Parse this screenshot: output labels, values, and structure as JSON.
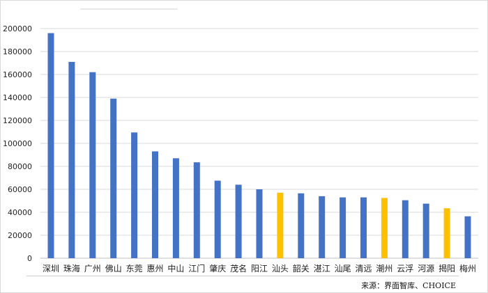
{
  "chart_data": {
    "type": "bar",
    "categories": [
      "深圳",
      "珠海",
      "广州",
      "佛山",
      "东莞",
      "惠州",
      "中山",
      "江门",
      "肇庆",
      "茂名",
      "阳江",
      "汕头",
      "韶关",
      "湛江",
      "汕尾",
      "清远",
      "潮州",
      "云浮",
      "河源",
      "揭阳",
      "梅州"
    ],
    "values": [
      196000,
      171000,
      162000,
      139000,
      109500,
      93000,
      87000,
      83500,
      67500,
      64000,
      60000,
      57000,
      56500,
      54000,
      53000,
      53000,
      52500,
      50500,
      47500,
      43500,
      36500
    ],
    "colors": [
      "#4472C4",
      "#4472C4",
      "#4472C4",
      "#4472C4",
      "#4472C4",
      "#4472C4",
      "#4472C4",
      "#4472C4",
      "#4472C4",
      "#4472C4",
      "#4472C4",
      "#FFC000",
      "#4472C4",
      "#4472C4",
      "#4472C4",
      "#4472C4",
      "#FFC000",
      "#4472C4",
      "#4472C4",
      "#FFC000",
      "#4472C4"
    ],
    "ylim": [
      0,
      200000
    ],
    "yticks": [
      0,
      20000,
      40000,
      60000,
      80000,
      100000,
      120000,
      140000,
      160000,
      180000,
      200000
    ],
    "grid": true,
    "title": "",
    "xlabel": "",
    "ylabel": ""
  },
  "source": "来源：界面智库、CHOICE"
}
